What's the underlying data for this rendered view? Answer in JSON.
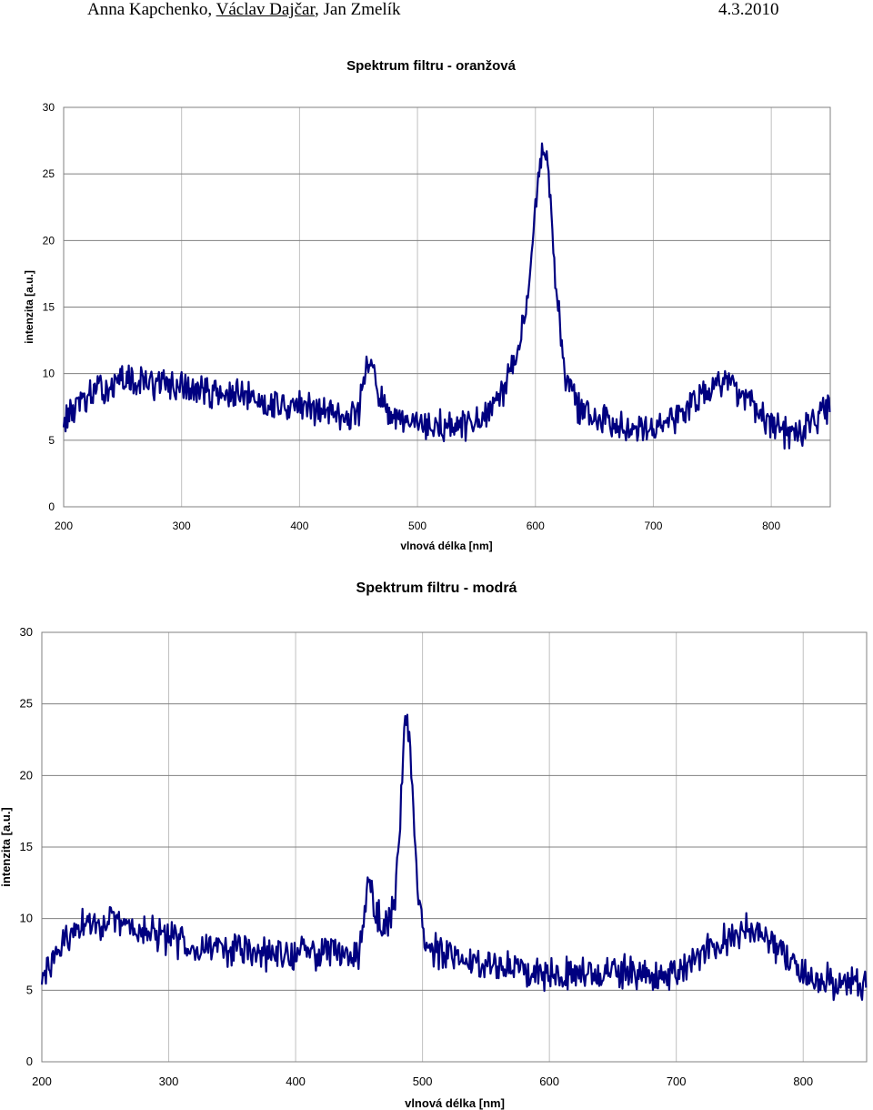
{
  "header": {
    "author1": "Anna Kapchenko,",
    "author2": "Václav Dajčar",
    "author3": ", Jan Zmelík",
    "date": "4.3.2010"
  },
  "chart_data": [
    {
      "type": "line",
      "title": "Spektrum filtru - oranžová",
      "xlabel": "vlnová délka [nm]",
      "ylabel": "intenzita [a.u.]",
      "xlim": [
        200,
        850
      ],
      "ylim": [
        0,
        30
      ],
      "xticks": [
        200,
        300,
        400,
        500,
        600,
        700,
        800
      ],
      "yticks": [
        0,
        5,
        10,
        15,
        20,
        25,
        30
      ],
      "grid": true,
      "color": "#000080",
      "series": [
        {
          "x": [
            200,
            210,
            225,
            250,
            275,
            300,
            325,
            350,
            375,
            400,
            425,
            450,
            457,
            475,
            500,
            525,
            550,
            565,
            575,
            585,
            595,
            600,
            605,
            608,
            612,
            618,
            625,
            635,
            650,
            700,
            720,
            760,
            800,
            825,
            850
          ],
          "values": [
            6.5,
            7.5,
            8.5,
            9.5,
            9.3,
            9.0,
            8.6,
            8.3,
            7.8,
            7.5,
            7.2,
            6.8,
            11.5,
            6.5,
            6.1,
            6.0,
            6.2,
            7.4,
            9.0,
            11.5,
            17.0,
            23.0,
            26.5,
            27.0,
            24.0,
            16.0,
            10.0,
            7.7,
            6.5,
            6.0,
            6.8,
            9.8,
            5.8,
            5.5,
            7.5
          ]
        }
      ]
    },
    {
      "type": "line",
      "title": "Spektrum filtru - modrá",
      "xlabel": "vlnová délka [nm]",
      "ylabel": "intenzita [a.u.]",
      "xlim": [
        200,
        850
      ],
      "ylim": [
        0,
        30
      ],
      "xticks": [
        200,
        300,
        400,
        500,
        600,
        700,
        800
      ],
      "yticks": [
        0,
        5,
        10,
        15,
        20,
        25,
        30
      ],
      "grid": true,
      "color": "#000080",
      "series": [
        {
          "x": [
            200,
            210,
            230,
            250,
            275,
            300,
            325,
            350,
            375,
            400,
            425,
            450,
            457,
            470,
            478,
            483,
            486,
            488,
            492,
            497,
            503,
            520,
            545,
            575,
            600,
            650,
            700,
            720,
            760,
            800,
            825,
            850
          ],
          "values": [
            5.5,
            7.5,
            9.5,
            9.8,
            9.3,
            8.6,
            8.1,
            7.9,
            7.5,
            7.5,
            7.8,
            7.6,
            12.5,
            9.0,
            11.0,
            18.0,
            24.0,
            24.5,
            19.0,
            11.5,
            8.0,
            7.3,
            7.0,
            6.5,
            6.3,
            6.2,
            6.0,
            7.5,
            9.5,
            6.0,
            5.6,
            5.5
          ]
        }
      ]
    }
  ]
}
